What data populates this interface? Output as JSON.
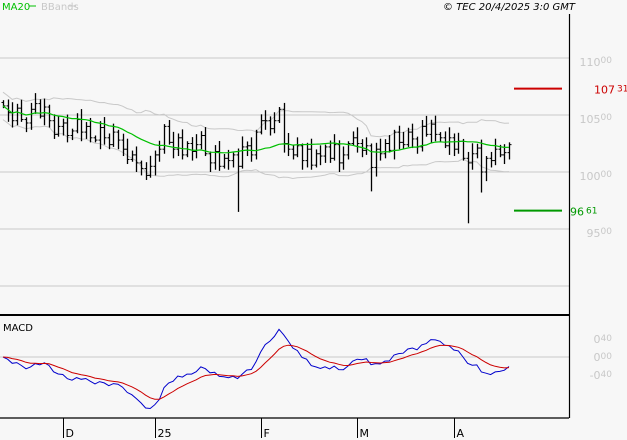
{
  "header": {
    "legend_ma": "MA20",
    "legend_bbands": "BBands",
    "copyright": "© TEC 20/4/2025 3:0 GMT"
  },
  "colors": {
    "ma": "#00c000",
    "bbands": "#c8c8c8",
    "bars": "#000000",
    "resistance": "#cc0000",
    "support": "#009900",
    "macd": "#0000cc",
    "signal": "#cc0000"
  },
  "chart_data": [
    {
      "type": "ohlc",
      "title": "",
      "ylim": [
        85,
        113.5
      ],
      "y_ticks": [
        {
          "v": 110,
          "main": "110",
          "dec": "00"
        },
        {
          "v": 105,
          "main": "105",
          "dec": "00"
        },
        {
          "v": 100,
          "main": "100",
          "dec": "00"
        },
        {
          "v": 95,
          "main": "95",
          "dec": "00"
        }
      ],
      "extra_gridlines": [
        90
      ],
      "x_labels": [
        {
          "i": 13,
          "label": "D"
        },
        {
          "i": 33,
          "label": "25"
        },
        {
          "i": 56,
          "label": "F"
        },
        {
          "i": 77,
          "label": "M"
        },
        {
          "i": 98,
          "label": "A"
        }
      ],
      "closes": [
        105.8,
        105.2,
        104.5,
        105.6,
        104.6,
        104.3,
        105.5,
        106.0,
        104.9,
        105.7,
        104.5,
        103.3,
        104.0,
        104.3,
        103.2,
        103.6,
        104.6,
        103.5,
        104.0,
        103.0,
        102.8,
        103.9,
        103.0,
        102.4,
        103.5,
        102.8,
        102.0,
        101.1,
        101.5,
        100.8,
        100.3,
        99.7,
        100.5,
        101.5,
        102.0,
        104.0,
        102.6,
        102.0,
        103.0,
        101.5,
        102.5,
        101.8,
        102.4,
        103.2,
        101.6,
        100.8,
        101.8,
        100.5,
        101.2,
        101.0,
        101.5,
        100.5,
        102.2,
        102.3,
        101.5,
        103.5,
        104.5,
        104.5,
        103.8,
        104.5,
        105.5,
        102.5,
        102.0,
        101.5,
        102.3,
        101.0,
        102.0,
        100.6,
        101.6,
        101.4,
        102.2,
        101.2,
        102.4,
        100.8,
        101.5,
        102.5,
        103.0,
        102.5,
        101.9,
        102.3,
        100.4,
        102.0,
        101.6,
        102.5,
        101.9,
        103.5,
        102.6,
        102.4,
        103.5,
        102.9,
        102.2,
        104.0,
        103.3,
        104.2,
        103.3,
        103.0,
        102.3,
        103.0,
        102.0,
        102.7,
        101.2,
        100.8,
        101.6,
        102.1,
        100.0,
        101.2,
        101.0,
        102.0,
        101.5,
        101.7,
        102.4
      ],
      "spike_lows": [
        {
          "i": 51,
          "low": 96.5
        },
        {
          "i": 101,
          "low": 95.5
        },
        {
          "i": 104,
          "low": 98.2
        },
        {
          "i": 80,
          "low": 98.3
        }
      ],
      "series": [
        {
          "name": "MA20"
        },
        {
          "name": "BBands"
        }
      ],
      "levels": [
        {
          "value": 107.31,
          "main": "107",
          "dec": "31",
          "kind": "resistance"
        },
        {
          "value": 96.61,
          "main": "96",
          "dec": "61",
          "kind": "support"
        }
      ]
    },
    {
      "type": "line",
      "title": "MACD",
      "ylim": [
        -1.3,
        1.0
      ],
      "y_ticks": [
        {
          "v": 0.4,
          "main": "0",
          "dec": "40"
        },
        {
          "v": 0,
          "main": "0",
          "dec": "00"
        },
        {
          "v": -0.4,
          "main": "-0",
          "dec": "40"
        }
      ],
      "series": [
        {
          "name": "MACD"
        },
        {
          "name": "Signal"
        }
      ]
    }
  ]
}
